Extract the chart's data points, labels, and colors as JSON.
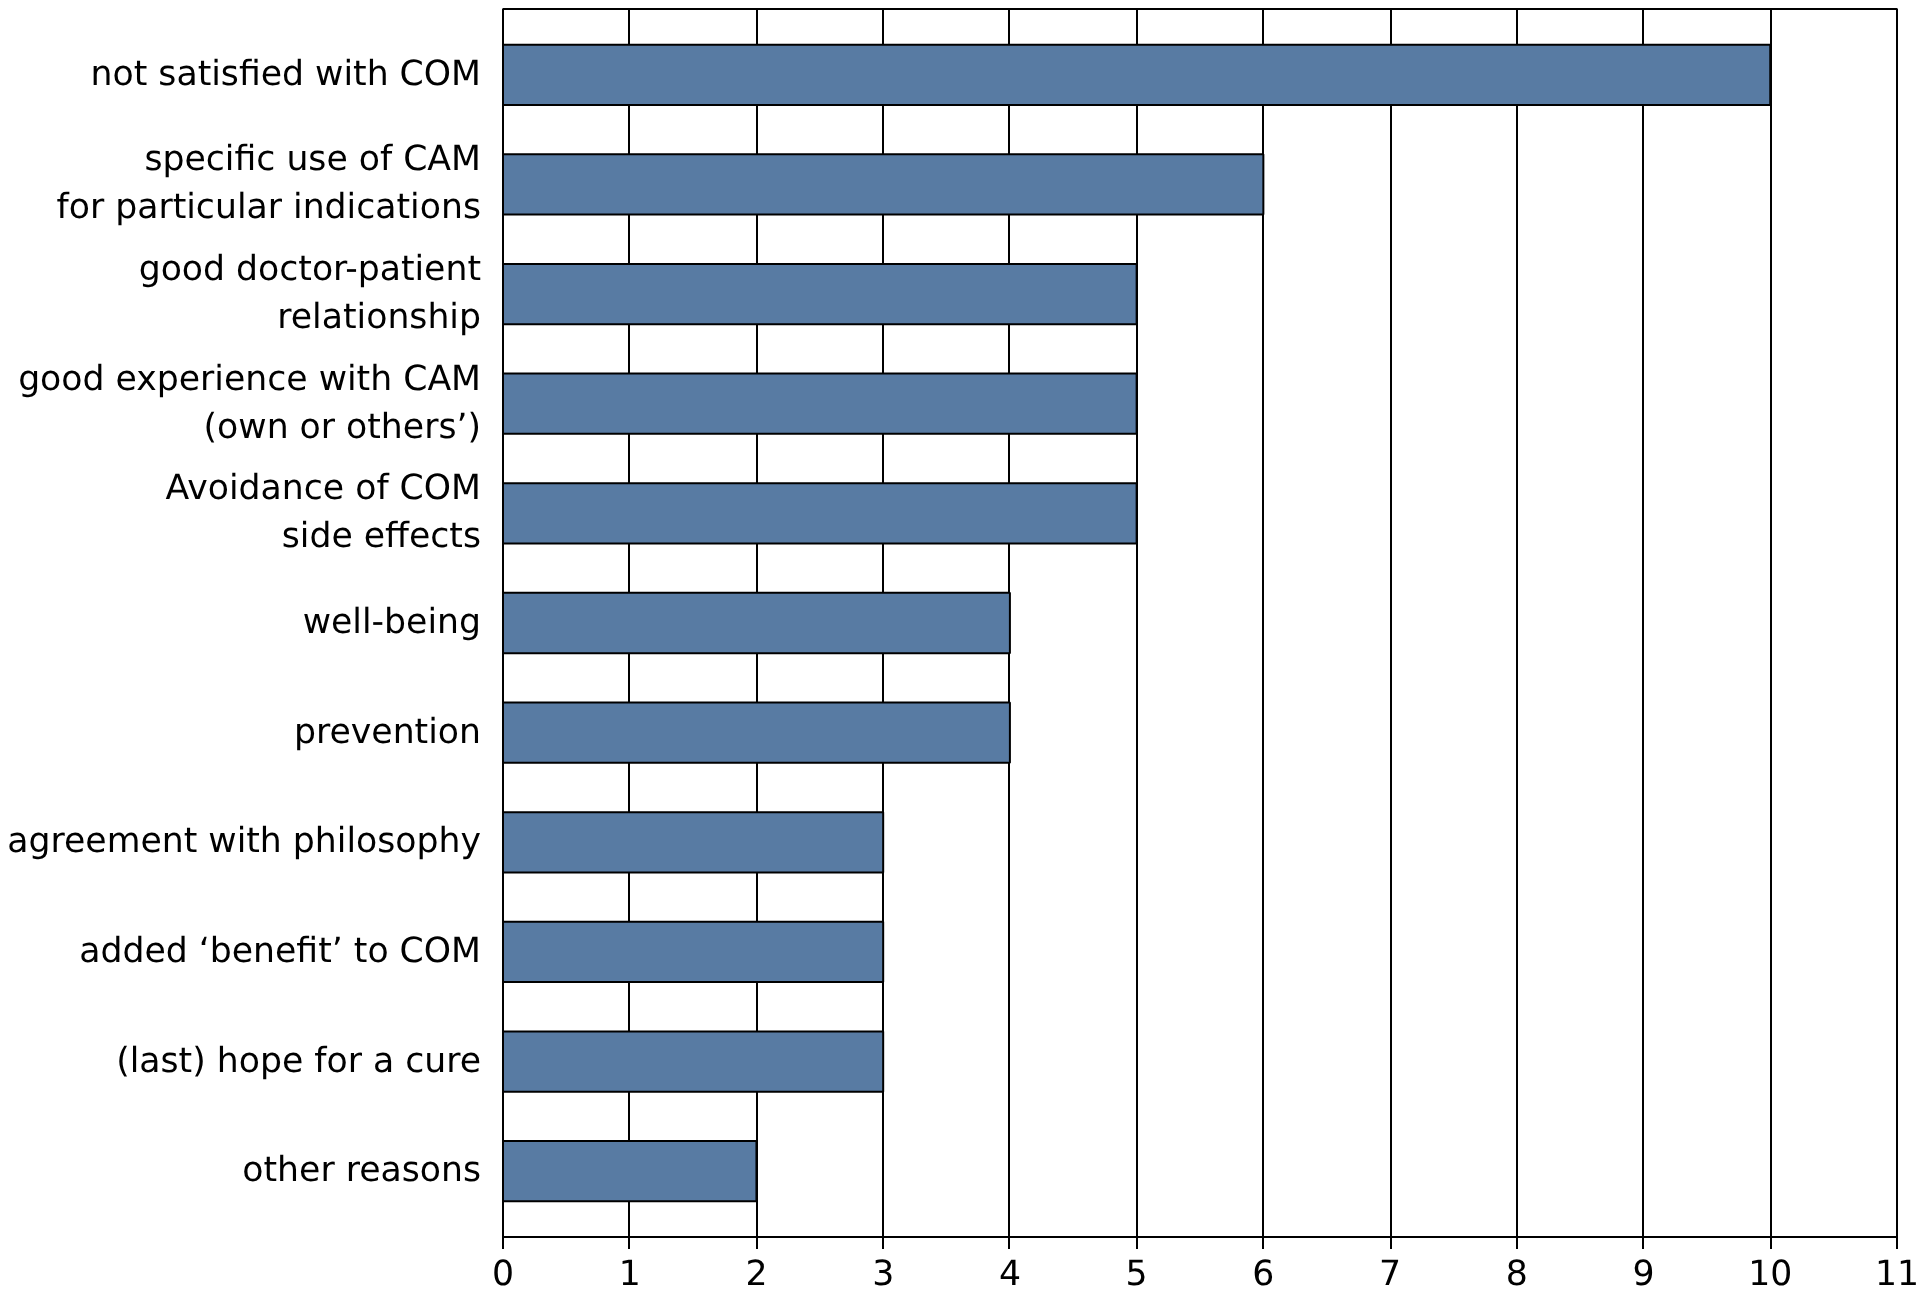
{
  "chart_data": {
    "type": "bar",
    "orientation": "horizontal",
    "categories": [
      "not satisfied with COM",
      "specific use of CAM\nfor particular indications",
      "good doctor-patient\nrelationship",
      "good experience with CAM\n(own or others’)",
      "Avoidance of COM\nside effects",
      "well-being",
      "prevention",
      "agreement with philosophy",
      "added ‘benefit’ to COM",
      "(last) hope for a cure",
      "other reasons"
    ],
    "values": [
      10,
      6,
      5,
      5,
      5,
      4,
      4,
      3,
      3,
      3,
      2
    ],
    "color": "#587ba3",
    "xlim": [
      0,
      11
    ],
    "xticks": [
      0,
      1,
      2,
      3,
      4,
      5,
      6,
      7,
      8,
      9,
      10,
      11
    ],
    "grid": "x"
  }
}
